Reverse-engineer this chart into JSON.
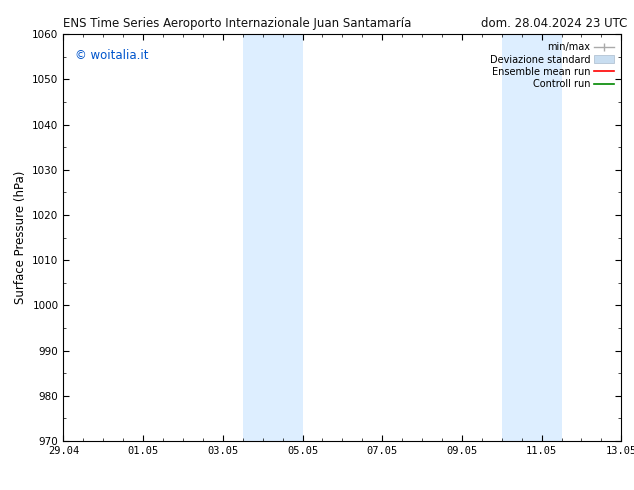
{
  "title_left": "ENS Time Series Aeroporto Internazionale Juan Santamaría",
  "title_right": "dom. 28.04.2024 23 UTC",
  "ylabel": "Surface Pressure (hPa)",
  "ylim": [
    970,
    1060
  ],
  "yticks": [
    970,
    980,
    990,
    1000,
    1010,
    1020,
    1030,
    1040,
    1050,
    1060
  ],
  "xtick_labels": [
    "29.04",
    "01.05",
    "03.05",
    "05.05",
    "07.05",
    "09.05",
    "11.05",
    "13.05"
  ],
  "xtick_positions": [
    0,
    2,
    4,
    6,
    8,
    10,
    12,
    14
  ],
  "watermark": "© woitalia.it",
  "watermark_color": "#0055cc",
  "background_color": "#ffffff",
  "plot_bg_color": "#ffffff",
  "shaded_bands": [
    {
      "x_start": 4.5,
      "x_end": 6.0
    },
    {
      "x_start": 11.0,
      "x_end": 12.5
    }
  ],
  "shaded_color": "#ddeeff",
  "legend_labels": [
    "min/max",
    "Deviazione standard",
    "Ensemble mean run",
    "Controll run"
  ],
  "minmax_color": "#aaaaaa",
  "devstd_color": "#c8ddf0",
  "ens_color": "#ff0000",
  "ctrl_color": "#008800",
  "x_start": 0,
  "x_end": 14
}
